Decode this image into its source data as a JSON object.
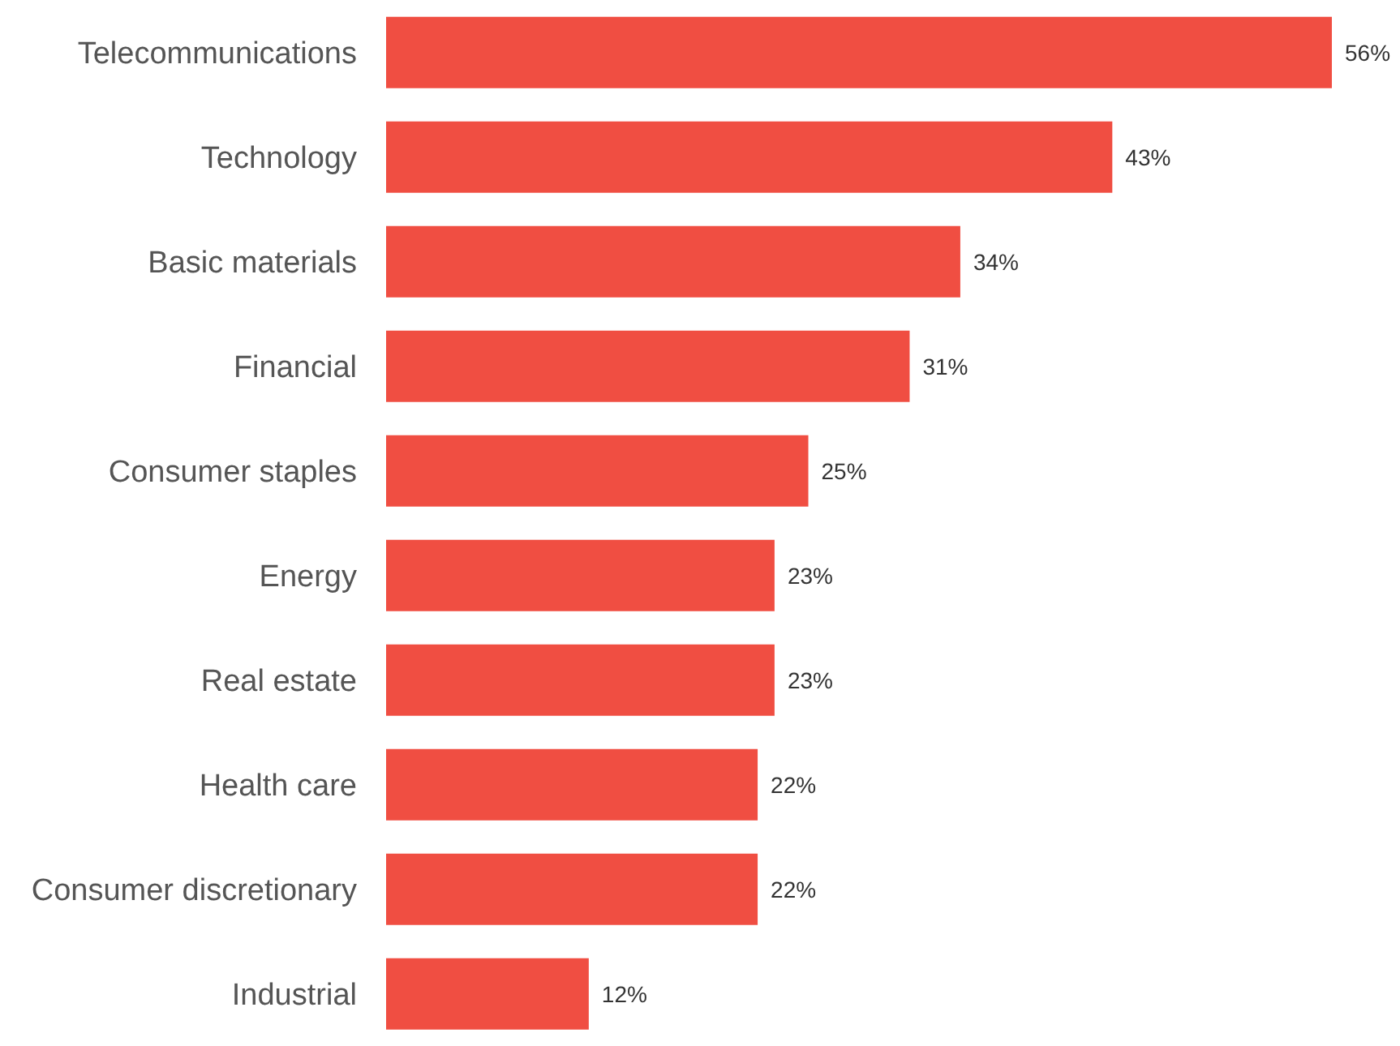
{
  "chart_data": {
    "type": "bar",
    "orientation": "horizontal",
    "categories": [
      "Telecommunications",
      "Technology",
      "Basic materials",
      "Financial",
      "Consumer staples",
      "Energy",
      "Real estate",
      "Health care",
      "Consumer discretionary",
      "Industrial"
    ],
    "values": [
      56,
      43,
      34,
      31,
      25,
      23,
      23,
      22,
      22,
      12
    ],
    "value_labels": [
      "56%",
      "43%",
      "34%",
      "31%",
      "25%",
      "23%",
      "23%",
      "22%",
      "22%",
      "12%"
    ],
    "color": "#f04e42",
    "grid": false,
    "legend": false
  }
}
